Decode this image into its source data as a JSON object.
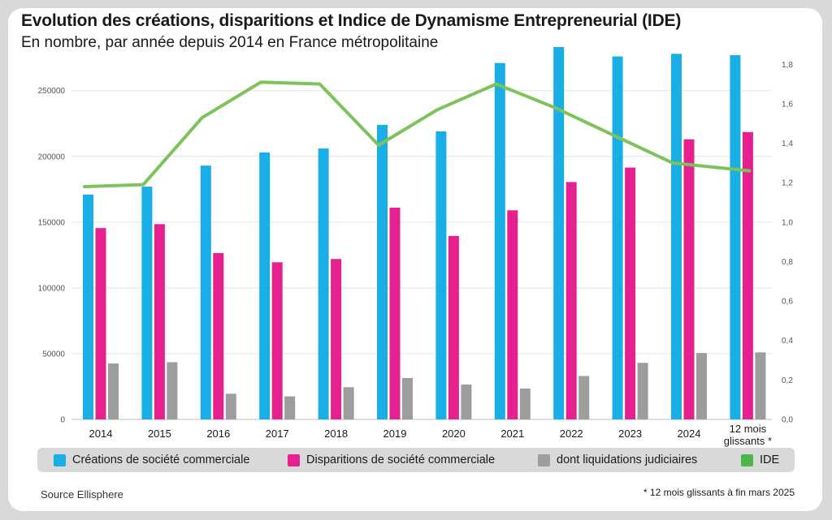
{
  "header": {
    "title": "Evolution des créations, disparitions et Indice de Dynamisme Entrepreneurial (IDE)",
    "subtitle": "En nombre, par année depuis 2014 en France métropolitaine"
  },
  "footer": {
    "source": "Source Ellisphere",
    "footnote": "* 12 mois glissants à fin mars 2025"
  },
  "legend": {
    "items": [
      {
        "label": "Créations de société commerciale",
        "color": "#1aaee6"
      },
      {
        "label": "Disparitions de société commerciale",
        "color": "#e6208f"
      },
      {
        "label": "dont liquidations judiciaires",
        "color": "#9d9d9d"
      },
      {
        "label": "IDE",
        "color": "#4cb648"
      }
    ]
  },
  "chart_data": {
    "type": "bar",
    "categories": [
      "2014",
      "2015",
      "2016",
      "2017",
      "2018",
      "2019",
      "2020",
      "2021",
      "2022",
      "2023",
      "2024",
      "12 mois glissants *"
    ],
    "category_lines": [
      [
        "2014"
      ],
      [
        "2015"
      ],
      [
        "2016"
      ],
      [
        "2017"
      ],
      [
        "2018"
      ],
      [
        "2019"
      ],
      [
        "2020"
      ],
      [
        "2021"
      ],
      [
        "2022"
      ],
      [
        "2023"
      ],
      [
        "2024"
      ],
      [
        "12 mois",
        "glissants *"
      ]
    ],
    "series": [
      {
        "name": "Créations de société commerciale",
        "axis": "left",
        "type": "bar",
        "color": "#1aaee6",
        "values": [
          171000,
          177000,
          193000,
          203000,
          206000,
          224000,
          219000,
          271000,
          284000,
          276000,
          278000,
          277000
        ]
      },
      {
        "name": "Disparitions de société commerciale",
        "axis": "left",
        "type": "bar",
        "color": "#e6208f",
        "values": [
          145500,
          148500,
          126500,
          119500,
          122000,
          161000,
          139500,
          159000,
          180500,
          191500,
          213000,
          218500
        ]
      },
      {
        "name": "dont liquidations judiciaires",
        "axis": "left",
        "type": "bar",
        "color": "#9d9d9d",
        "values": [
          42500,
          43500,
          19500,
          17500,
          24500,
          31500,
          26500,
          23500,
          33000,
          43000,
          50500,
          51000
        ]
      },
      {
        "name": "IDE",
        "axis": "right",
        "type": "line",
        "color": "#7dc35b",
        "values": [
          1.18,
          1.19,
          1.53,
          1.71,
          1.7,
          1.39,
          1.57,
          1.7,
          1.58,
          1.44,
          1.3,
          1.26
        ]
      }
    ],
    "y_left": {
      "min": 0,
      "max": 285000,
      "ticks": [
        0,
        50000,
        100000,
        150000,
        200000,
        250000
      ],
      "tick_labels": [
        "0",
        "50000",
        "100000",
        "150000",
        "200000",
        "250000"
      ]
    },
    "y_right": {
      "min": 0,
      "max": 1.9,
      "ticks": [
        0,
        0.2,
        0.4,
        0.6,
        0.8,
        1.0,
        1.2,
        1.4,
        1.6,
        1.8
      ],
      "tick_labels": [
        "0,0",
        "0,2",
        "0,4",
        "0,6",
        "0,8",
        "1,0",
        "1,2",
        "1,4",
        "1,6",
        "1,8"
      ]
    },
    "grid": true,
    "legend_position": "bottom"
  }
}
